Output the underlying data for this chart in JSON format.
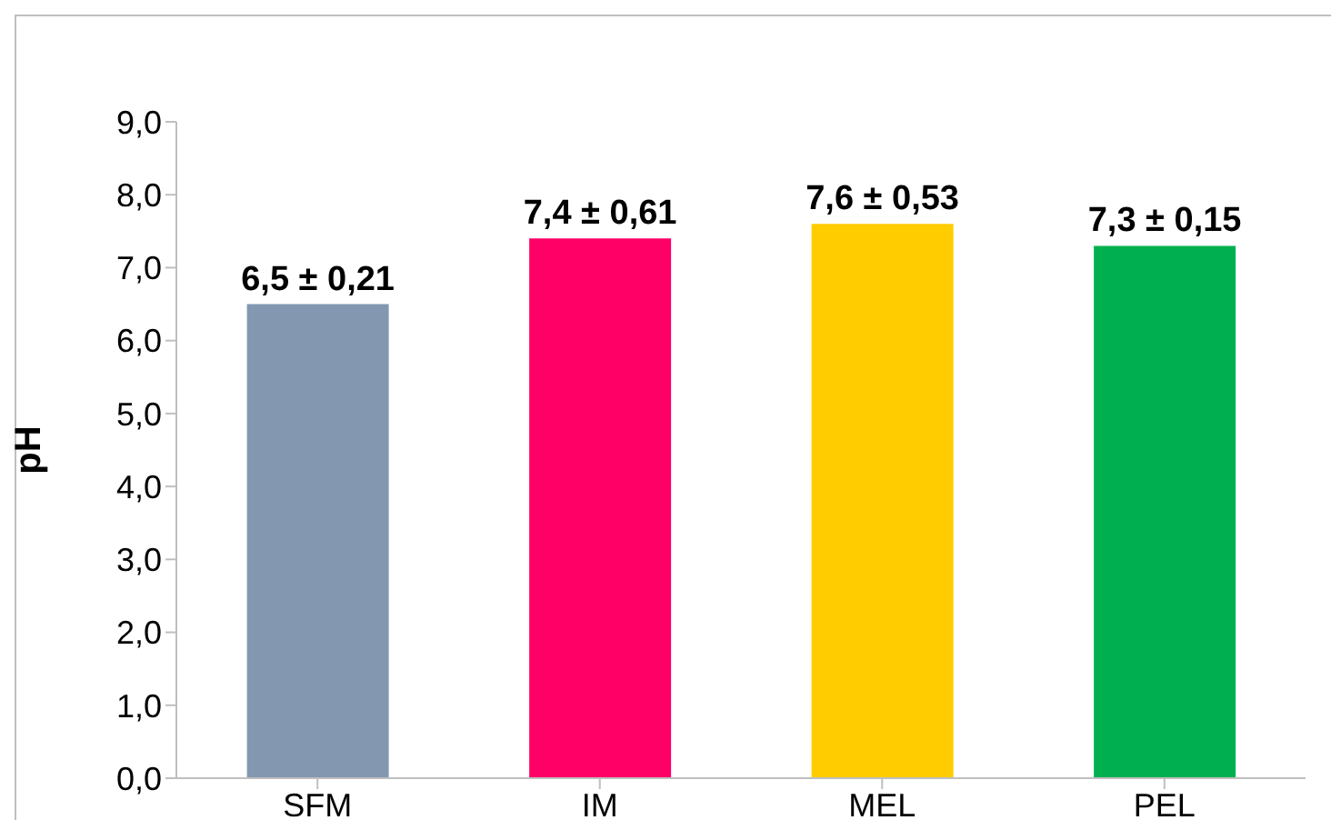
{
  "chart_data": {
    "type": "bar",
    "ylabel": "pH",
    "categories": [
      "SFM",
      "IM",
      "MEL",
      "PEL"
    ],
    "values": [
      6.5,
      7.4,
      7.6,
      7.3
    ],
    "colors": [
      "#8497b0",
      "#ff0066",
      "#ffcc00",
      "#00b050"
    ],
    "value_labels": [
      "6,5 ± 0,21",
      "7,4 ± 0,61",
      "7,6 ± 0,53",
      "7,3 ± 0,15"
    ],
    "ylim": [
      0,
      9
    ],
    "yticks": [
      {
        "value": 0,
        "label": "0,0"
      },
      {
        "value": 1,
        "label": "1,0"
      },
      {
        "value": 2,
        "label": "2,0"
      },
      {
        "value": 3,
        "label": "3,0"
      },
      {
        "value": 4,
        "label": "4,0"
      },
      {
        "value": 5,
        "label": "5,0"
      },
      {
        "value": 6,
        "label": "6,0"
      },
      {
        "value": 7,
        "label": "7,0"
      },
      {
        "value": 8,
        "label": "8,0"
      },
      {
        "value": 9,
        "label": "9,0"
      }
    ],
    "grid": false,
    "legend": false
  }
}
